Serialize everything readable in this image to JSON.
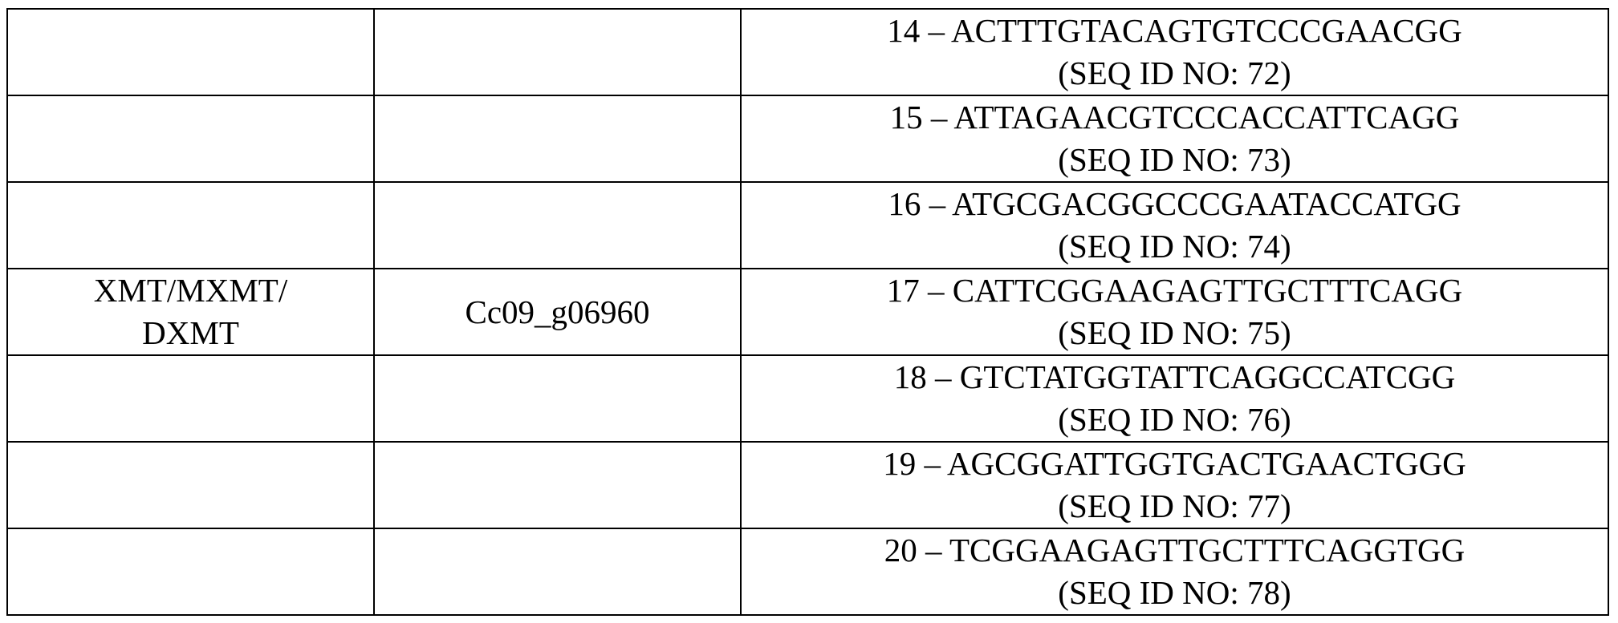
{
  "rows": [
    {
      "gene": "",
      "gene_id": "",
      "guide": "14 – ACTTTGTACAGTGTCCCGAACGG",
      "seq_id": "(SEQ ID NO: 72)"
    },
    {
      "gene": "",
      "gene_id": "",
      "guide": "15 – ATTAGAACGTCCCACCATTCAGG",
      "seq_id": "(SEQ ID NO: 73)"
    },
    {
      "gene": "",
      "gene_id": "",
      "guide": "16 – ATGCGACGGCCCGAATACCATGG",
      "seq_id": "(SEQ ID NO: 74)"
    },
    {
      "gene_line1": "XMT/MXMT/",
      "gene_line2": "DXMT",
      "gene_id": "Cc09_g06960",
      "guide": "17 – CATTCGGAAGAGTTGCTTTCAGG",
      "seq_id": "(SEQ ID NO: 75)"
    },
    {
      "gene": "",
      "gene_id": "",
      "guide": "18 – GTCTATGGTATTCAGGCCATCGG",
      "seq_id": "(SEQ ID NO: 76)"
    },
    {
      "gene": "",
      "gene_id": "",
      "guide": "19 – AGCGGATTGGTGACTGAACTGGG",
      "seq_id": "(SEQ ID NO: 77)"
    },
    {
      "gene": "",
      "gene_id": "",
      "guide": "20 – TCGGAAGAGTTGCTTTCAGGTGG",
      "seq_id": "(SEQ ID NO: 78)"
    }
  ]
}
